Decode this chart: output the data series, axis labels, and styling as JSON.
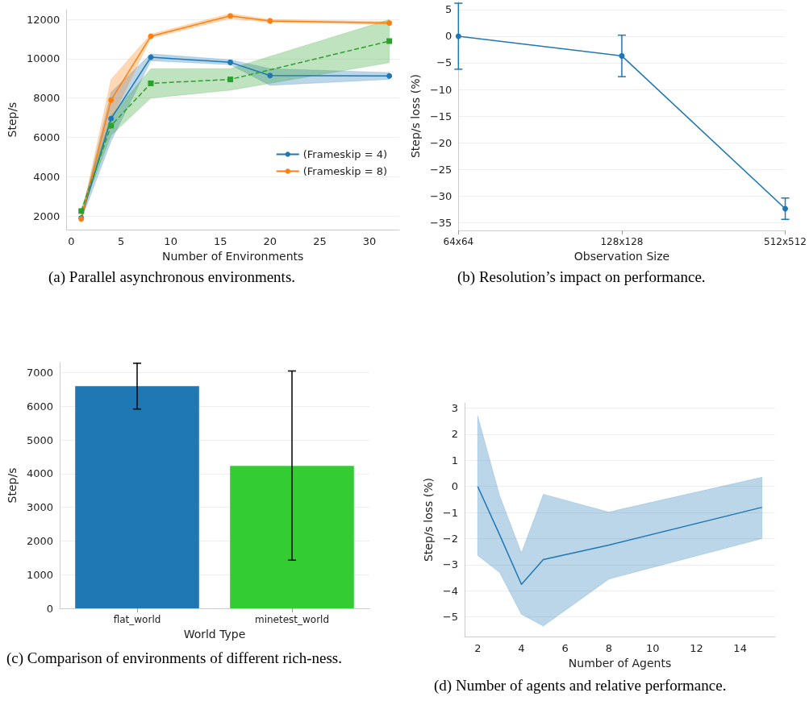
{
  "chart_data": [
    {
      "type": "line",
      "xlabel": "Number of Environments",
      "ylabel": "Step/s",
      "x": [
        1,
        4,
        8,
        16,
        20,
        32
      ],
      "series": [
        {
          "name": "(Frameskip = 4)",
          "color": "#1f77b4",
          "marker": "circle",
          "values": [
            1900,
            6950,
            10080,
            9820,
            9150,
            9130
          ],
          "lower": [
            1800,
            5800,
            9900,
            9700,
            8650,
            8950
          ],
          "upper": [
            2000,
            8300,
            10250,
            9950,
            9500,
            9300
          ]
        },
        {
          "name": "(Frameskip = 8)",
          "color": "#ff7f0e",
          "marker": "circle",
          "values": [
            1850,
            7900,
            11150,
            12180,
            11930,
            11820
          ],
          "lower": [
            1800,
            6900,
            11050,
            12050,
            11850,
            11750
          ],
          "upper": [
            1950,
            8950,
            11250,
            12300,
            12000,
            11900
          ]
        },
        {
          "color": "#2ca02c",
          "marker": "square",
          "line_style": "dashed",
          "x": [
            1,
            4,
            8,
            16,
            32
          ],
          "values": [
            2250,
            6600,
            8750,
            8950,
            10900
          ],
          "lower": [
            2150,
            6100,
            8000,
            8400,
            9800
          ],
          "upper": [
            2350,
            7100,
            9500,
            9500,
            12000
          ]
        }
      ],
      "xlim": [
        -0.5,
        33
      ],
      "xticks": [
        0,
        5,
        10,
        15,
        20,
        25,
        30
      ],
      "ylim": [
        1300,
        12500
      ],
      "yticks": [
        2000,
        4000,
        6000,
        8000,
        10000,
        12000
      ],
      "grid": "y",
      "legend": "bottom right",
      "annotations": [
        "(a) Parallel asynchronous environments."
      ]
    },
    {
      "type": "line",
      "xlabel": "Observation Size",
      "ylabel": "Step/s loss (%)",
      "categories": [
        "64x64",
        "128x128",
        "512x512"
      ],
      "series": [
        {
          "color": "#1f77b4",
          "marker": "circle",
          "values": [
            0,
            -3.7,
            -32.4
          ],
          "errors": [
            [
              -6.2,
              6.2
            ],
            [
              -7.6,
              0.2
            ],
            [
              -34.4,
              -30.4
            ]
          ]
        }
      ],
      "ylim": [
        -36.5,
        6.5
      ],
      "yticks": [
        -35,
        -30,
        -25,
        -20,
        -15,
        -10,
        -5,
        0,
        5
      ],
      "grid": "y",
      "annotations": [
        "(b) Resolution’s impact on performance."
      ]
    },
    {
      "type": "bar",
      "xlabel": "World Type",
      "ylabel": "Step/s",
      "categories": [
        "flat_world",
        "minetest_world"
      ],
      "values": [
        6600,
        4230
      ],
      "colors": [
        "#1f77b4",
        "#33cc33"
      ],
      "errors": [
        [
          5920,
          7280
        ],
        [
          1430,
          7050
        ]
      ],
      "ylim": [
        0,
        7300
      ],
      "yticks": [
        0,
        1000,
        2000,
        3000,
        4000,
        5000,
        6000,
        7000
      ],
      "grid": "y",
      "annotations": [
        "(c) Comparison of environments of different rich-ness."
      ]
    },
    {
      "type": "line",
      "xlabel": "Number of Agents",
      "ylabel": "Step/s loss (%)",
      "x": [
        2,
        3,
        4,
        5,
        8,
        15
      ],
      "series": [
        {
          "color": "#1f77b4",
          "marker": "none",
          "values": [
            0,
            -1.85,
            -3.75,
            -2.8,
            -2.25,
            -0.8
          ],
          "lower": [
            -2.65,
            -3.3,
            -4.9,
            -5.35,
            -3.55,
            -2.0
          ],
          "upper": [
            2.7,
            -0.35,
            -2.55,
            -0.3,
            -0.98,
            0.35
          ]
        }
      ],
      "xlim": [
        1.4,
        15.6
      ],
      "xticks": [
        2,
        4,
        6,
        8,
        10,
        12,
        14
      ],
      "ylim": [
        -5.75,
        3.2
      ],
      "yticks": [
        -5,
        -4,
        -3,
        -2,
        -1,
        0,
        1,
        2,
        3
      ],
      "grid": "y",
      "annotations": [
        "(d) Number of agents and relative performance."
      ]
    }
  ]
}
